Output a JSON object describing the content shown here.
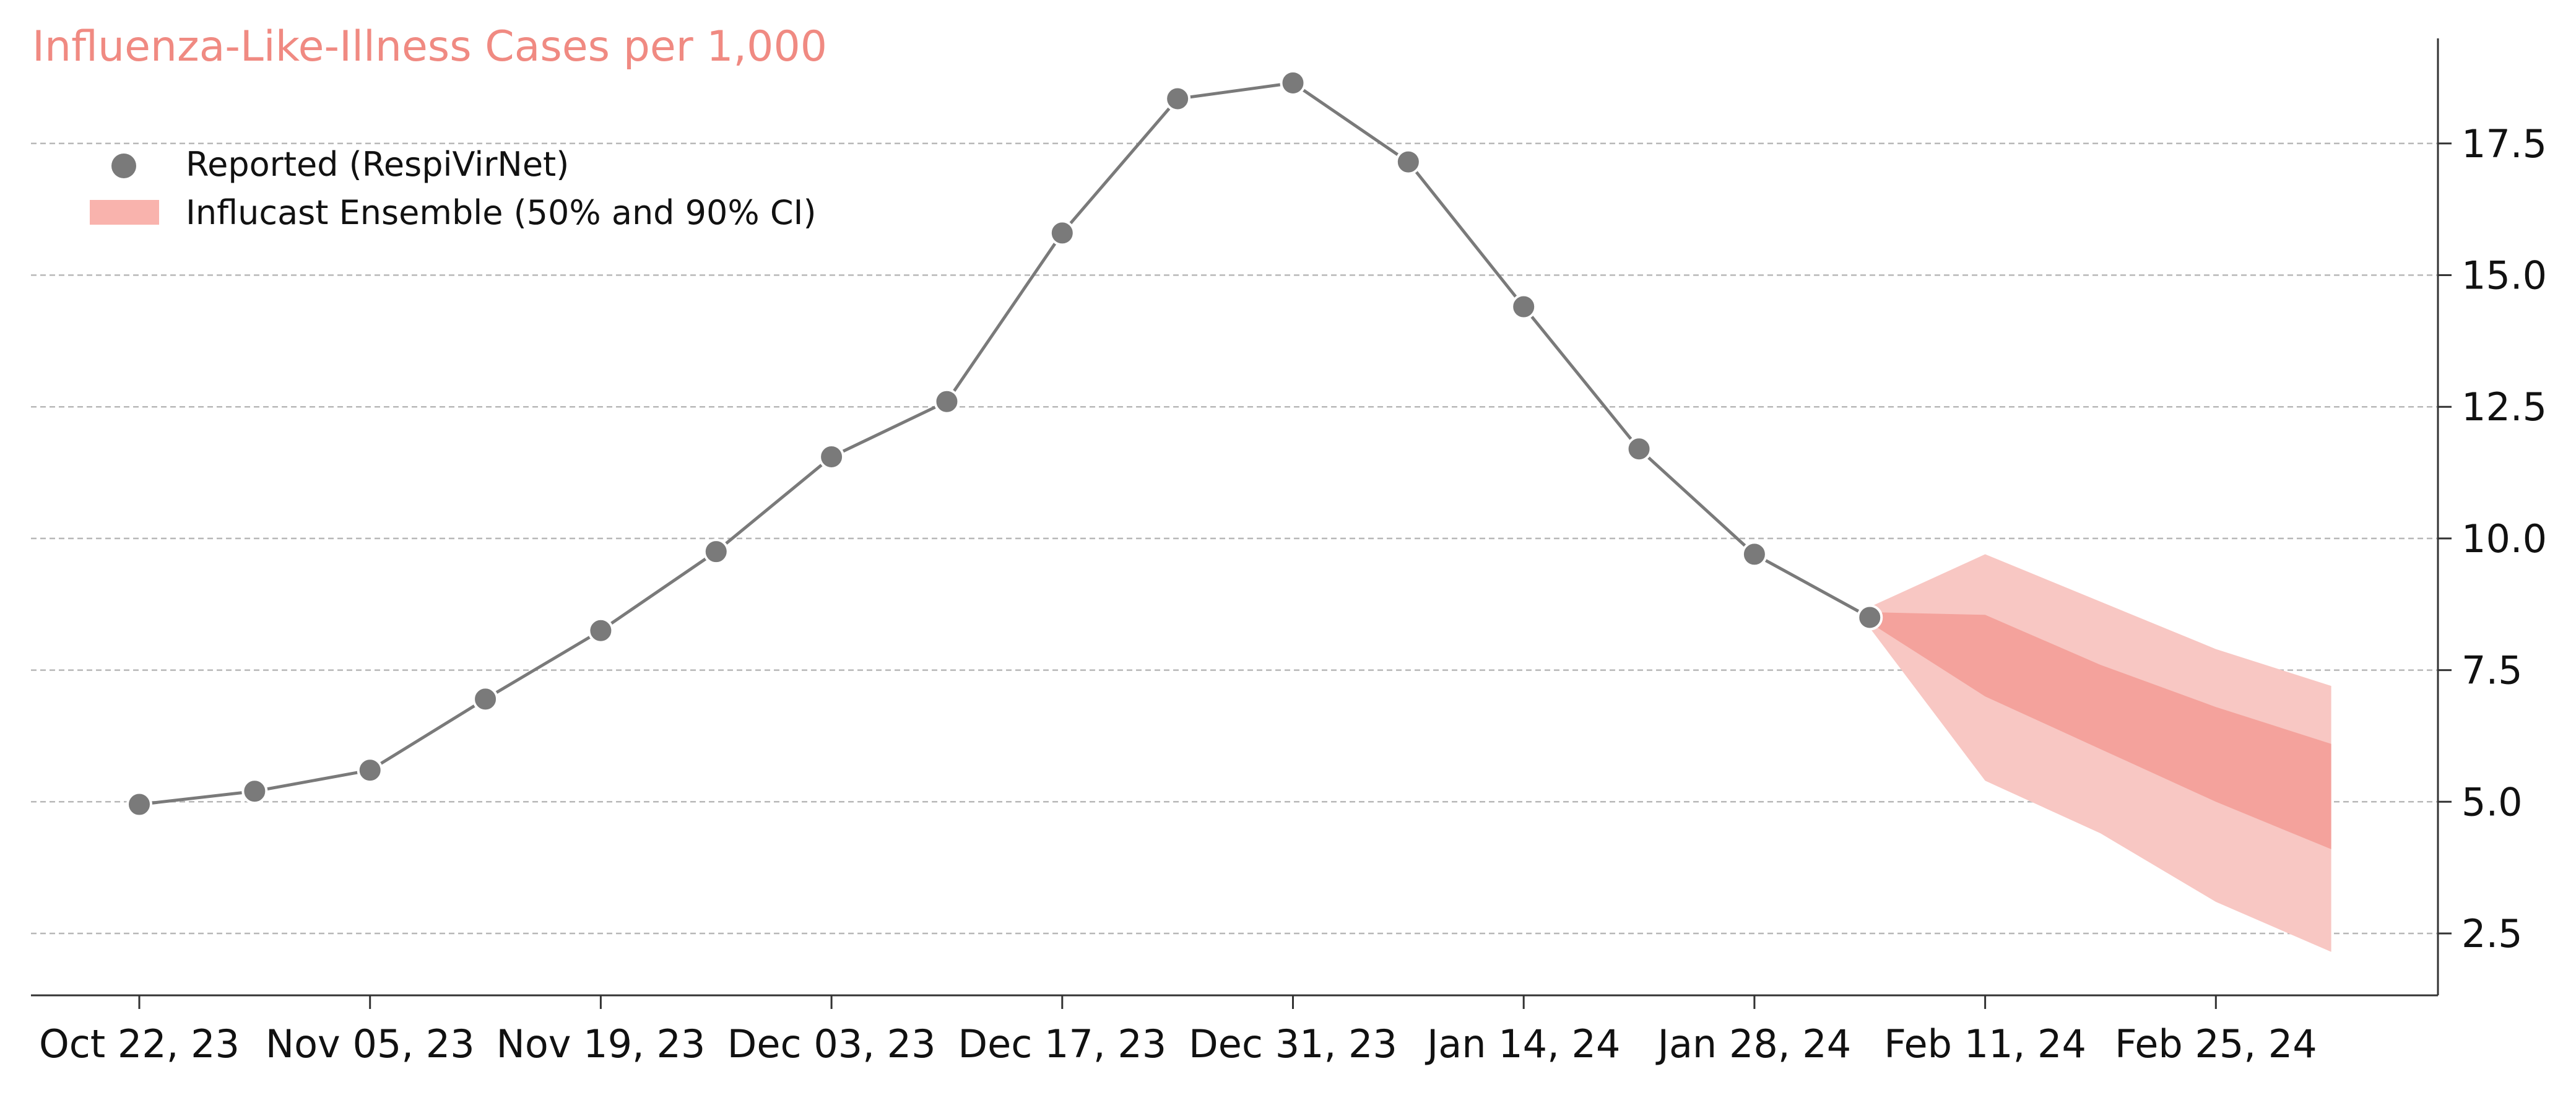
{
  "chart_data": {
    "type": "line",
    "title": "Influenza-Like-Illness Cases per 1,000",
    "xlabel": "",
    "ylabel": "",
    "x_ticks": [
      "Oct 22, 23",
      "Nov 05, 23",
      "Nov 19, 23",
      "Dec 03, 23",
      "Dec 17, 23",
      "Dec 31, 23",
      "Jan 14, 24",
      "Jan 28, 24",
      "Feb 11, 24",
      "Feb 25, 24"
    ],
    "y_ticks": [
      "2.5",
      "5.0",
      "7.5",
      "10.0",
      "12.5",
      "15.0",
      "17.5"
    ],
    "xlim": [
      "2023-10-19",
      "2024-03-07"
    ],
    "ylim": [
      1.3,
      19.5
    ],
    "y_axis_position": "right",
    "grid": "horizontal-dashed",
    "legend": {
      "position": "top-left",
      "items": [
        {
          "label": "Reported (RespiVirNet)",
          "marker": "circle"
        },
        {
          "label": "Influcast Ensemble (50% and 90% CI)",
          "marker": "band"
        }
      ]
    },
    "series": [
      {
        "name": "Reported (RespiVirNet)",
        "type": "line-markers",
        "x": [
          "2023-10-22",
          "2023-10-29",
          "2023-11-05",
          "2023-11-12",
          "2023-11-19",
          "2023-11-26",
          "2023-12-03",
          "2023-12-10",
          "2023-12-17",
          "2023-12-24",
          "2023-12-31",
          "2024-01-07",
          "2024-01-14",
          "2024-01-21",
          "2024-01-28",
          "2024-02-04"
        ],
        "values": [
          4.95,
          5.2,
          5.6,
          6.95,
          8.25,
          9.75,
          11.55,
          12.6,
          15.8,
          18.35,
          18.65,
          17.15,
          14.4,
          11.7,
          9.7,
          8.5
        ]
      },
      {
        "name": "Influcast Ensemble (50% and 90% CI)",
        "type": "bands",
        "x": [
          "2024-02-04",
          "2024-02-11",
          "2024-02-18",
          "2024-02-25",
          "2024-03-03"
        ],
        "ci90_lower": [
          8.3,
          5.4,
          4.4,
          3.1,
          2.15
        ],
        "ci90_upper": [
          8.7,
          9.7,
          8.8,
          7.9,
          7.2
        ],
        "ci50_lower": [
          8.4,
          7.0,
          6.0,
          5.0,
          4.1
        ],
        "ci50_upper": [
          8.6,
          8.55,
          7.6,
          6.8,
          6.1
        ]
      }
    ],
    "colors": {
      "reported": "#7a7a7a",
      "ci90": "#f8c7c3",
      "ci50": "#f4a29c",
      "legend_band": "#f9b3ad",
      "title": "#f08a82",
      "grid": "#b8b8b8",
      "axis": "#333333"
    }
  }
}
